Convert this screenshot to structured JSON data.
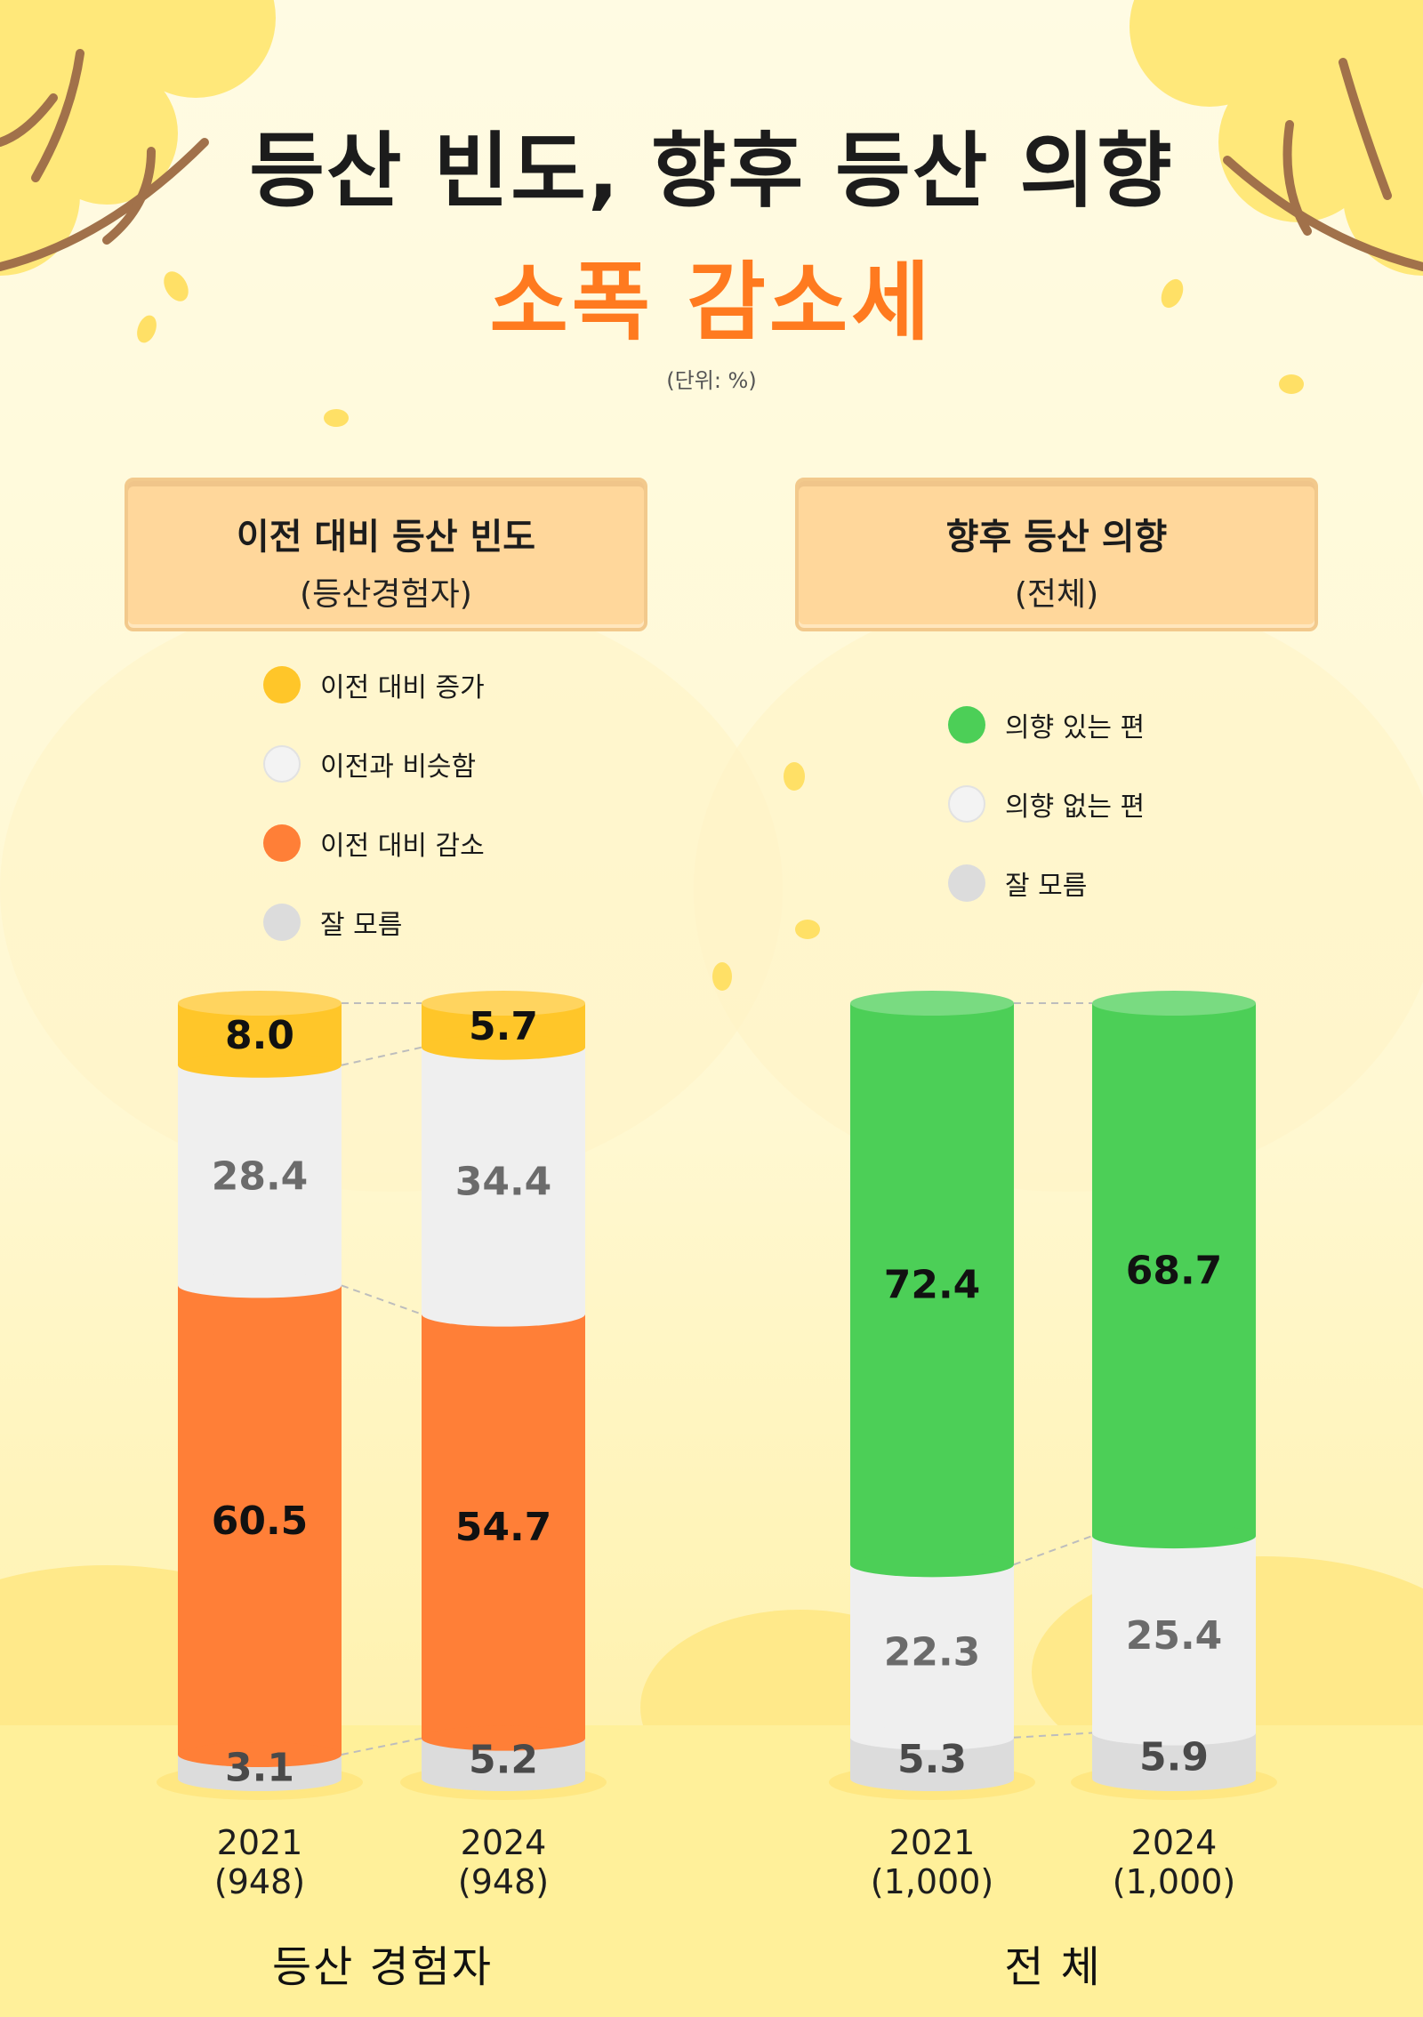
{
  "header": {
    "title_line1": "등산 빈도, 향후 등산 의향",
    "title_line2": "소폭 감소세",
    "unit": "(단위: %)"
  },
  "colors": {
    "increase": "#ffc629",
    "similar": "#efefef",
    "decrease": "#ff7f37",
    "unknown": "#dcdcdc",
    "intend": "#4ccf57",
    "no_intend": "#efefef",
    "title_accent": "#ff7a1f"
  },
  "chart_data": [
    {
      "type": "bar",
      "stacked": true,
      "title": "이전 대비 등산 빈도",
      "subtitle": "(등산경험자)",
      "group_label": "등산 경험자",
      "categories": [
        "2021",
        "2024"
      ],
      "sample_sizes": [
        "(948)",
        "(948)"
      ],
      "ylim": [
        0,
        100
      ],
      "legend_position": "top",
      "series": [
        {
          "name": "잘 모름",
          "color": "#dcdcdc",
          "values": [
            3.1,
            5.2
          ]
        },
        {
          "name": "이전 대비 감소",
          "color": "#ff7f37",
          "values": [
            60.5,
            54.7
          ]
        },
        {
          "name": "이전과 비슷함",
          "color": "#efefef",
          "values": [
            28.4,
            34.4
          ]
        },
        {
          "name": "이전 대비 증가",
          "color": "#ffc629",
          "values": [
            8.0,
            5.7
          ]
        }
      ],
      "legend": [
        "이전 대비 증가",
        "이전과 비슷함",
        "이전 대비 감소",
        "잘 모름"
      ],
      "data_labels": [
        [
          "3.1",
          "60.5",
          "28.4",
          "8.0"
        ],
        [
          "5.2",
          "54.7",
          "34.4",
          "5.7"
        ]
      ]
    },
    {
      "type": "bar",
      "stacked": true,
      "title": "향후 등산 의향",
      "subtitle": "(전체)",
      "group_label": "전 체",
      "categories": [
        "2021",
        "2024"
      ],
      "sample_sizes": [
        "(1,000)",
        "(1,000)"
      ],
      "ylim": [
        0,
        100
      ],
      "legend_position": "top",
      "series": [
        {
          "name": "잘 모름",
          "color": "#dcdcdc",
          "values": [
            5.3,
            5.9
          ]
        },
        {
          "name": "의향 없는 편",
          "color": "#efefef",
          "values": [
            22.3,
            25.4
          ]
        },
        {
          "name": "의향 있는 편",
          "color": "#4ccf57",
          "values": [
            72.4,
            68.7
          ]
        }
      ],
      "legend": [
        "의향 있는 편",
        "의향 없는 편",
        "잘 모름"
      ],
      "data_labels": [
        [
          "5.3",
          "22.3",
          "72.4"
        ],
        [
          "5.9",
          "25.4",
          "68.7"
        ]
      ]
    }
  ]
}
